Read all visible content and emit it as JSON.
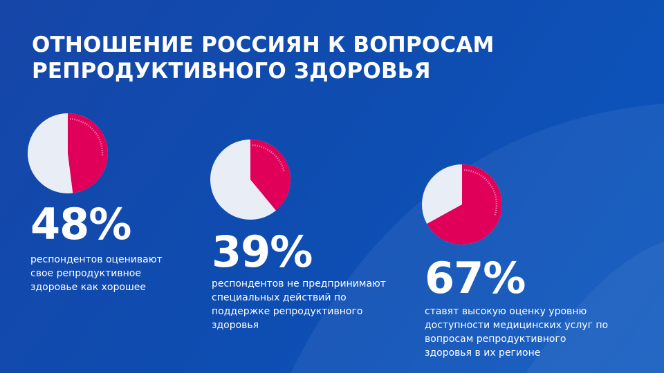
{
  "title": {
    "line1": "ОТНОШЕНИЕ РОССИЯН К ВОПРОСАМ",
    "line2": "РЕПРОДУКТИВНОГО ЗДОРОВЬЯ"
  },
  "colors": {
    "accent": "#e0005a",
    "remainder": "#e9edf5",
    "background": "#1149b0"
  },
  "chart_data": [
    {
      "type": "pie",
      "categories": [
        "",
        ""
      ],
      "values": [
        48,
        52
      ],
      "value_label": "48%",
      "description": "респондентов оценивают свое репродуктивное здоровье как хорошее"
    },
    {
      "type": "pie",
      "categories": [
        "",
        ""
      ],
      "values": [
        39,
        61
      ],
      "value_label": "39%",
      "description": "респондентов не предпринимают специальных действий по поддержке репродуктивного здоровья"
    },
    {
      "type": "pie",
      "categories": [
        "",
        ""
      ],
      "values": [
        67,
        33
      ],
      "value_label": "67%",
      "description": "ставят высокую оценку уровню доступности медицинских услуг по вопросам репродуктивного здоровья в их регионе"
    }
  ]
}
